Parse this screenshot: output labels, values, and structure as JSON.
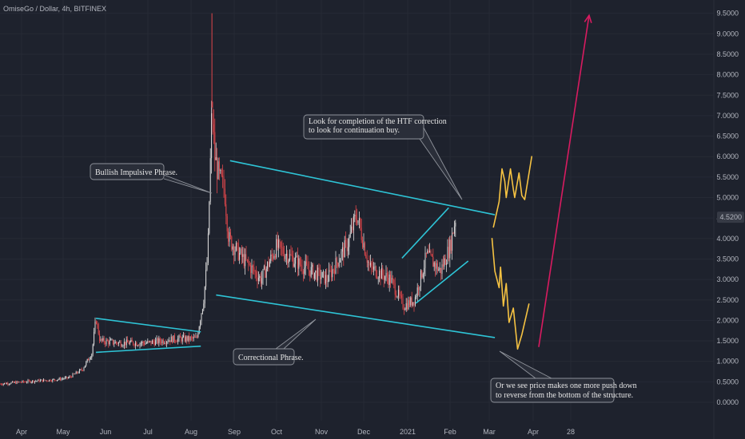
{
  "header": {
    "symbol_title": "OmiseGo / Dollar, 4h, BITFINEX"
  },
  "price_tag": {
    "value": "4.5200",
    "color": "#363a45"
  },
  "chart_data": {
    "type": "candlestick",
    "title": "OmiseGo / Dollar, 4h, BITFINEX",
    "x_ticks": [
      "Apr",
      "May",
      "Jun",
      "Jul",
      "Aug",
      "Sep",
      "Oct",
      "Nov",
      "Dec",
      "2021",
      "Feb",
      "Mar",
      "Apr",
      "28"
    ],
    "y_ticks": [
      "9.5000",
      "9.0000",
      "8.5000",
      "8.0000",
      "7.5000",
      "7.0000",
      "6.5000",
      "6.0000",
      "5.5000",
      "5.0000",
      "4.5000",
      "4.0000",
      "3.5000",
      "3.0000",
      "2.5000",
      "2.0000",
      "1.5000",
      "1.0000",
      "0.5000",
      "0.0000"
    ],
    "ylim": [
      -0.25,
      9.7
    ],
    "last_price": 4.52,
    "price_path": [
      [
        "2020-03-22",
        0.45
      ],
      [
        "2020-04-10",
        0.52
      ],
      [
        "2020-04-25",
        0.55
      ],
      [
        "2020-05-05",
        0.6
      ],
      [
        "2020-05-15",
        0.8
      ],
      [
        "2020-05-22",
        1.2
      ],
      [
        "2020-05-25",
        2.05
      ],
      [
        "2020-05-28",
        1.5
      ],
      [
        "2020-06-10",
        1.45
      ],
      [
        "2020-07-01",
        1.45
      ],
      [
        "2020-07-20",
        1.55
      ],
      [
        "2020-08-05",
        1.55
      ],
      [
        "2020-08-10",
        2.5
      ],
      [
        "2020-08-13",
        3.6
      ],
      [
        "2020-08-16",
        7.2
      ],
      [
        "2020-08-18",
        6.0
      ],
      [
        "2020-08-21",
        5.5
      ],
      [
        "2020-08-25",
        5.2
      ],
      [
        "2020-08-28",
        4.0
      ],
      [
        "2020-09-05",
        3.6
      ],
      [
        "2020-09-20",
        3.0
      ],
      [
        "2020-10-01",
        3.8
      ],
      [
        "2020-10-20",
        3.3
      ],
      [
        "2020-11-05",
        3.0
      ],
      [
        "2020-11-20",
        3.9
      ],
      [
        "2020-11-26",
        4.6
      ],
      [
        "2020-12-05",
        3.3
      ],
      [
        "2020-12-20",
        3.0
      ],
      [
        "2020-12-29",
        2.35
      ],
      [
        "2021-01-06",
        2.5
      ],
      [
        "2021-01-15",
        3.6
      ],
      [
        "2021-01-25",
        3.2
      ],
      [
        "2021-02-01",
        3.8
      ],
      [
        "2021-02-05",
        4.52
      ]
    ],
    "spike_high": 9.5,
    "trendlines": [
      {
        "name": "channel-top",
        "color": "#2ec4d6",
        "from": [
          "2020-08-29",
          5.9
        ],
        "to": [
          "2021-03-05",
          4.58
        ]
      },
      {
        "name": "channel-bottom",
        "color": "#2ec4d6",
        "from": [
          "2020-08-19",
          2.62
        ],
        "to": [
          "2021-03-05",
          1.58
        ]
      },
      {
        "name": "triangle-top",
        "color": "#2ec4d6",
        "from": [
          "2020-05-25",
          2.05
        ],
        "to": [
          "2020-08-08",
          1.72
        ]
      },
      {
        "name": "triangle-bottom",
        "color": "#2ec4d6",
        "from": [
          "2020-05-25",
          1.22
        ],
        "to": [
          "2020-08-08",
          1.37
        ]
      },
      {
        "name": "wedge-top",
        "color": "#2ec4d6",
        "from": [
          "2020-12-28",
          3.52
        ],
        "to": [
          "2021-01-31",
          4.75
        ]
      },
      {
        "name": "wedge-bottom",
        "color": "#2ec4d6",
        "from": [
          "2021-01-07",
          2.42
        ],
        "to": [
          "2021-02-14",
          3.45
        ]
      }
    ],
    "projections": [
      {
        "name": "bullish-path",
        "color": "#f5c242",
        "points": [
          [
            "2021-03-04",
            4.28
          ],
          [
            "2021-03-08",
            4.9
          ],
          [
            "2021-03-10",
            5.7
          ],
          [
            "2021-03-12",
            5.4
          ],
          [
            "2021-03-13",
            5.0
          ],
          [
            "2021-03-16",
            5.7
          ],
          [
            "2021-03-18",
            5.2
          ],
          [
            "2021-03-19",
            5.0
          ],
          [
            "2021-03-22",
            5.6
          ],
          [
            "2021-03-24",
            5.05
          ],
          [
            "2021-03-26",
            4.95
          ],
          [
            "2021-03-31",
            6.0
          ]
        ]
      },
      {
        "name": "bearish-path",
        "color": "#f5c242",
        "points": [
          [
            "2021-03-03",
            4.0
          ],
          [
            "2021-03-05",
            3.2
          ],
          [
            "2021-03-08",
            2.8
          ],
          [
            "2021-03-09",
            3.3
          ],
          [
            "2021-03-11",
            2.35
          ],
          [
            "2021-03-13",
            2.9
          ],
          [
            "2021-03-15",
            1.95
          ],
          [
            "2021-03-18",
            2.3
          ],
          [
            "2021-03-21",
            1.3
          ],
          [
            "2021-03-24",
            1.65
          ],
          [
            "2021-03-29",
            2.4
          ]
        ]
      }
    ],
    "target_arrow": {
      "color": "#d81b60",
      "from": [
        "2021-04-05",
        1.35
      ],
      "to": [
        "2021-05-11",
        9.45
      ]
    },
    "annotations": [
      {
        "id": "bullish-impulsive",
        "text": [
          "Bullish Impulsive Phrase."
        ]
      },
      {
        "id": "htf-correction",
        "text": [
          "Look for completion of the HTF correction",
          "to look for continuation buy."
        ]
      },
      {
        "id": "correctional",
        "text": [
          "Correctional Phrase."
        ]
      },
      {
        "id": "push-down",
        "text": [
          "Or we see price makes one more push down",
          "to reverse from the bottom of the structure."
        ]
      }
    ]
  }
}
